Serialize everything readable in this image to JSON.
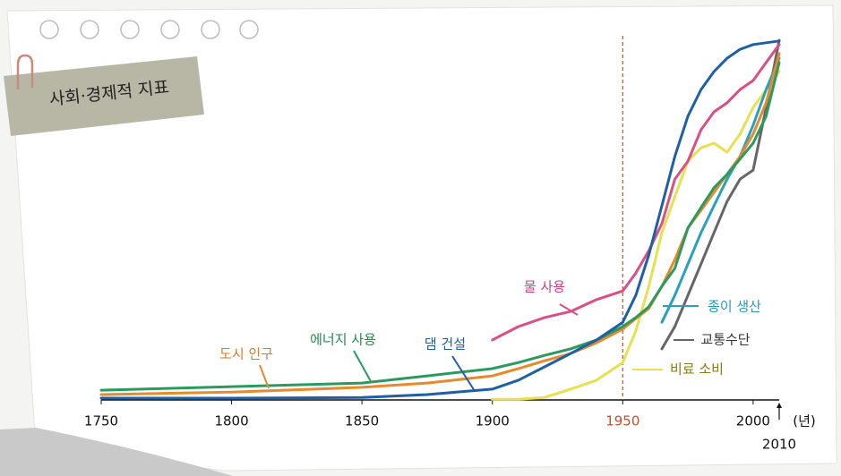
{
  "chart_data": {
    "type": "line",
    "title": "사회·경제적 지표",
    "x": [
      1750,
      1800,
      1850,
      1875,
      1900,
      1910,
      1920,
      1930,
      1940,
      1950,
      1955,
      1960,
      1965,
      1970,
      1975,
      1980,
      1985,
      1990,
      1995,
      2000,
      2005,
      2010
    ],
    "xlim": [
      1750,
      2010
    ],
    "ylim": [
      0,
      100
    ],
    "xticks": [
      1750,
      1800,
      1850,
      1900,
      1950,
      2000,
      2010
    ],
    "x_unit": "(년)",
    "highlight_x": 1950,
    "highlight_color": "#c0502a",
    "series": [
      {
        "name": "도시 인구",
        "color": "#e8892b",
        "label_color": "#e07a1f",
        "values": [
          1.5,
          2.2,
          3.5,
          4.7,
          6.7,
          8.7,
          10.9,
          12.9,
          15.9,
          19.7,
          22.6,
          25.4,
          31.6,
          39,
          47.8,
          52.7,
          57.7,
          62.7,
          67.7,
          73.9,
          82.6,
          96.3
        ]
      },
      {
        "name": "에너지 사용",
        "color": "#2a9a5f",
        "label_color": "#238a52",
        "values": [
          2.7,
          3.7,
          4.7,
          6.7,
          8.7,
          10.4,
          12.4,
          14.2,
          16.7,
          20.4,
          22.9,
          25.9,
          31.6,
          36.6,
          47.8,
          53.5,
          59,
          62.7,
          67,
          71.4,
          78.9,
          93.8
        ]
      },
      {
        "name": "댐 건설",
        "color": "#1f5fa6",
        "label_color": "#1f5fa6",
        "values": [
          0.5,
          0.5,
          0.7,
          1.5,
          3,
          5.5,
          9.2,
          12.9,
          16.7,
          21.6,
          29.1,
          40.3,
          54,
          67.7,
          78.9,
          86.3,
          91.3,
          95,
          97.5,
          98.8,
          99.3,
          99.8
        ]
      },
      {
        "name": "물 사용",
        "color": "#d94f86",
        "label_color": "#d4407c",
        "values": [
          null,
          null,
          null,
          null,
          16.7,
          20.4,
          22.9,
          24.6,
          27.9,
          30.3,
          35.3,
          41.5,
          49,
          61.4,
          66.4,
          75.1,
          80.1,
          82.6,
          86.3,
          88.8,
          93.8,
          98.8
        ]
      },
      {
        "name": "종이 생산",
        "color": "#2aa0c0",
        "label_color": "#2a98b8",
        "values": [
          null,
          null,
          null,
          null,
          null,
          null,
          null,
          null,
          null,
          null,
          null,
          null,
          21.6,
          29.1,
          37.8,
          46.5,
          54,
          61.4,
          67.7,
          76.4,
          86.3,
          95
        ]
      },
      {
        "name": "교통수단",
        "color": "#666666",
        "label_color": "#333333",
        "values": [
          null,
          null,
          null,
          null,
          null,
          null,
          null,
          null,
          null,
          null,
          null,
          null,
          14.2,
          20.4,
          29.1,
          37.8,
          46.5,
          55.2,
          61.4,
          63.9,
          81.3,
          100
        ]
      },
      {
        "name": "비료 소비",
        "color": "#e8e050",
        "label_color": "#8a7a10",
        "values": [
          null,
          null,
          null,
          null,
          0.2,
          0.2,
          0.7,
          3,
          5.5,
          10.4,
          19.2,
          31.6,
          46.5,
          56.5,
          66.4,
          70.1,
          71.4,
          68.9,
          73.9,
          81.3,
          86.3,
          91.3
        ]
      }
    ]
  }
}
